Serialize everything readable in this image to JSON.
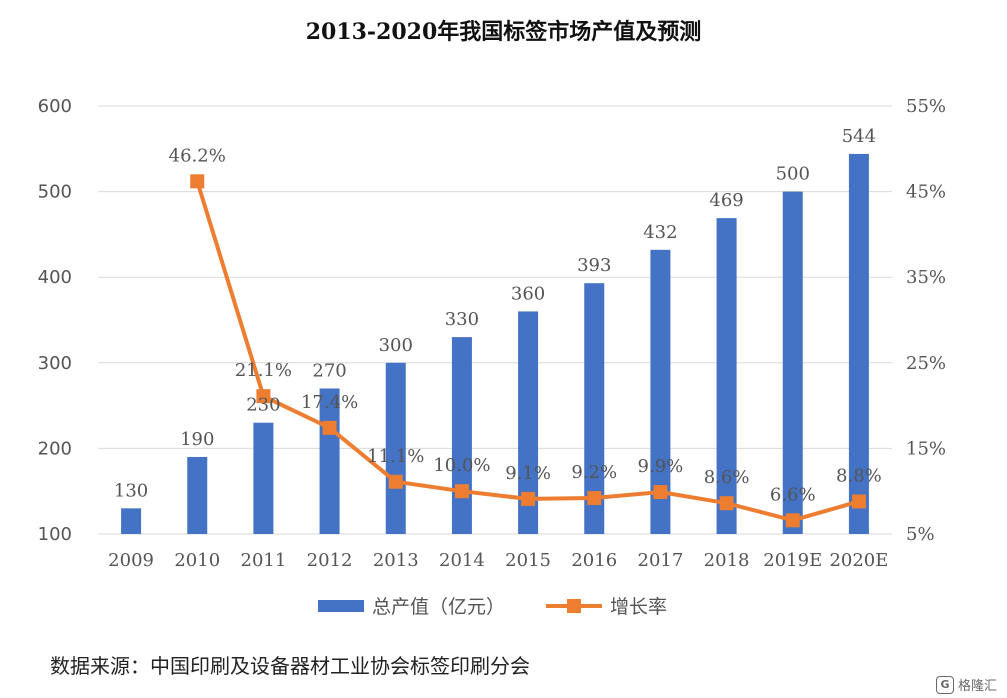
{
  "chart_data": {
    "type": "bar",
    "title": "2013-2020年我国标签市场产值及预测",
    "categories": [
      "2009",
      "2010",
      "2011",
      "2012",
      "2013",
      "2014",
      "2015",
      "2016",
      "2017",
      "2018",
      "2019E",
      "2020E"
    ],
    "series": [
      {
        "name": "总产值（亿元）",
        "type": "bar",
        "axis": "left",
        "values": [
          130,
          190,
          230,
          270,
          300,
          330,
          360,
          393,
          432,
          469,
          500,
          544
        ],
        "labels": [
          "130",
          "190",
          "230",
          "270",
          "300",
          "330",
          "360",
          "393",
          "432",
          "469",
          "500",
          "544"
        ],
        "color": "#4472C4"
      },
      {
        "name": "增长率",
        "type": "line",
        "axis": "right",
        "values": [
          null,
          46.2,
          21.1,
          17.4,
          11.1,
          10.0,
          9.1,
          9.2,
          9.9,
          8.6,
          6.6,
          8.8
        ],
        "labels": [
          "",
          "46.2%",
          "21.1%",
          "17.4%",
          "11.1%",
          "10.0%",
          "9.1%",
          "9.2%",
          "9.9%",
          "8.6%",
          "6.6%",
          "8.8%"
        ],
        "color": "#ED7D31"
      }
    ],
    "ylim_left": [
      100,
      600
    ],
    "yticks_left": [
      "100",
      "200",
      "300",
      "400",
      "500",
      "600"
    ],
    "ylim_right": [
      5,
      55
    ],
    "yticks_right": [
      "5%",
      "15%",
      "25%",
      "35%",
      "45%",
      "55%"
    ],
    "grid": true,
    "legend_position": "bottom"
  },
  "source_note": "数据来源：中国印刷及设备器材工业协会标签印刷分会",
  "watermark": {
    "logo": "G",
    "text": "格隆汇"
  }
}
